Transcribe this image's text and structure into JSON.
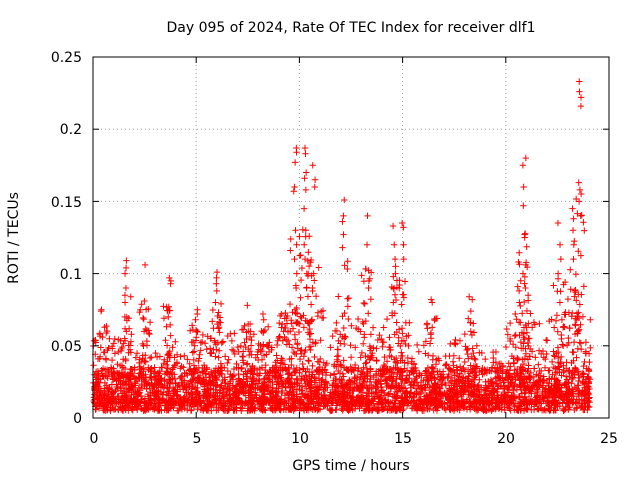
{
  "chart_data": {
    "type": "scatter",
    "title": "Day 095 of 2024, Rate Of TEC Index for receiver dlf1",
    "xlabel": "GPS time / hours",
    "ylabel": "ROTI / TECUs",
    "xlim": [
      0,
      25
    ],
    "ylim": [
      0,
      0.25
    ],
    "x_ticks": [
      0,
      5,
      10,
      15,
      20,
      25
    ],
    "x_tick_labels": [
      "0",
      "5",
      "10",
      "15",
      "20",
      "25"
    ],
    "y_ticks": [
      0,
      0.05,
      0.1,
      0.15,
      0.2,
      0.25
    ],
    "y_tick_labels": [
      "0",
      "0.05",
      "0.1",
      "0.15",
      "0.2",
      "0.25"
    ],
    "grid": true,
    "marker": "+",
    "series_color": "#ff0000",
    "baseline_band": [
      0.005,
      0.035
    ],
    "peaks": [
      {
        "x": 0.4,
        "values": [
          0.075,
          0.074,
          0.058,
          0.056
        ]
      },
      {
        "x": 1.6,
        "values": [
          0.109,
          0.104,
          0.1,
          0.09,
          0.085,
          0.08,
          0.07,
          0.06,
          0.055
        ]
      },
      {
        "x": 2.5,
        "values": [
          0.106,
          0.081,
          0.06,
          0.05
        ]
      },
      {
        "x": 3.7,
        "values": [
          0.097,
          0.095,
          0.093,
          0.07,
          0.045
        ]
      },
      {
        "x": 5.0,
        "values": [
          0.075,
          0.072,
          0.068,
          0.06,
          0.05
        ]
      },
      {
        "x": 6.0,
        "values": [
          0.101,
          0.097,
          0.093,
          0.088,
          0.08,
          0.065,
          0.062
        ]
      },
      {
        "x": 7.5,
        "values": [
          0.078,
          0.065,
          0.06
        ]
      },
      {
        "x": 8.2,
        "values": [
          0.072,
          0.068,
          0.06
        ]
      },
      {
        "x": 9.2,
        "values": [
          0.072,
          0.065,
          0.06
        ]
      },
      {
        "x": 9.8,
        "values": [
          0.187,
          0.184,
          0.177,
          0.16,
          0.157,
          0.13,
          0.12,
          0.11,
          0.1,
          0.09,
          0.075
        ]
      },
      {
        "x": 10.3,
        "values": [
          0.187,
          0.183,
          0.17,
          0.166,
          0.158,
          0.145,
          0.13,
          0.12,
          0.11,
          0.1,
          0.09
        ]
      },
      {
        "x": 10.7,
        "values": [
          0.175,
          0.165,
          0.16,
          0.1,
          0.09
        ]
      },
      {
        "x": 12.1,
        "values": [
          0.151,
          0.14,
          0.136,
          0.127,
          0.118
        ]
      },
      {
        "x": 13.3,
        "values": [
          0.14,
          0.12,
          0.095,
          0.09
        ]
      },
      {
        "x": 14.6,
        "values": [
          0.133,
          0.12,
          0.11,
          0.105,
          0.1,
          0.09,
          0.08
        ]
      },
      {
        "x": 15.0,
        "values": [
          0.135,
          0.132,
          0.12,
          0.11
        ]
      },
      {
        "x": 16.4,
        "values": [
          0.082,
          0.08
        ]
      },
      {
        "x": 18.3,
        "values": [
          0.084,
          0.082,
          0.074,
          0.066,
          0.06
        ]
      },
      {
        "x": 20.6,
        "values": [
          0.091,
          0.088,
          0.08
        ]
      },
      {
        "x": 20.9,
        "values": [
          0.18,
          0.175,
          0.16,
          0.147,
          0.127,
          0.125,
          0.106,
          0.1,
          0.09
        ]
      },
      {
        "x": 22.6,
        "values": [
          0.135,
          0.12,
          0.11,
          0.1,
          0.08
        ]
      },
      {
        "x": 23.3,
        "values": [
          0.145,
          0.138,
          0.13,
          0.12,
          0.11
        ]
      },
      {
        "x": 23.6,
        "values": [
          0.233,
          0.226,
          0.222,
          0.216,
          0.163,
          0.158,
          0.15,
          0.14
        ]
      }
    ],
    "activity": [
      {
        "start": 0.0,
        "end": 2.0,
        "level": 0.045
      },
      {
        "start": 2.0,
        "end": 5.0,
        "level": 0.035
      },
      {
        "start": 5.0,
        "end": 7.0,
        "level": 0.05
      },
      {
        "start": 7.0,
        "end": 9.0,
        "level": 0.045
      },
      {
        "start": 9.0,
        "end": 11.5,
        "level": 0.065
      },
      {
        "start": 11.5,
        "end": 15.5,
        "level": 0.06
      },
      {
        "start": 15.5,
        "end": 18.0,
        "level": 0.045
      },
      {
        "start": 18.0,
        "end": 20.0,
        "level": 0.04
      },
      {
        "start": 20.0,
        "end": 24.1,
        "level": 0.06
      }
    ]
  }
}
